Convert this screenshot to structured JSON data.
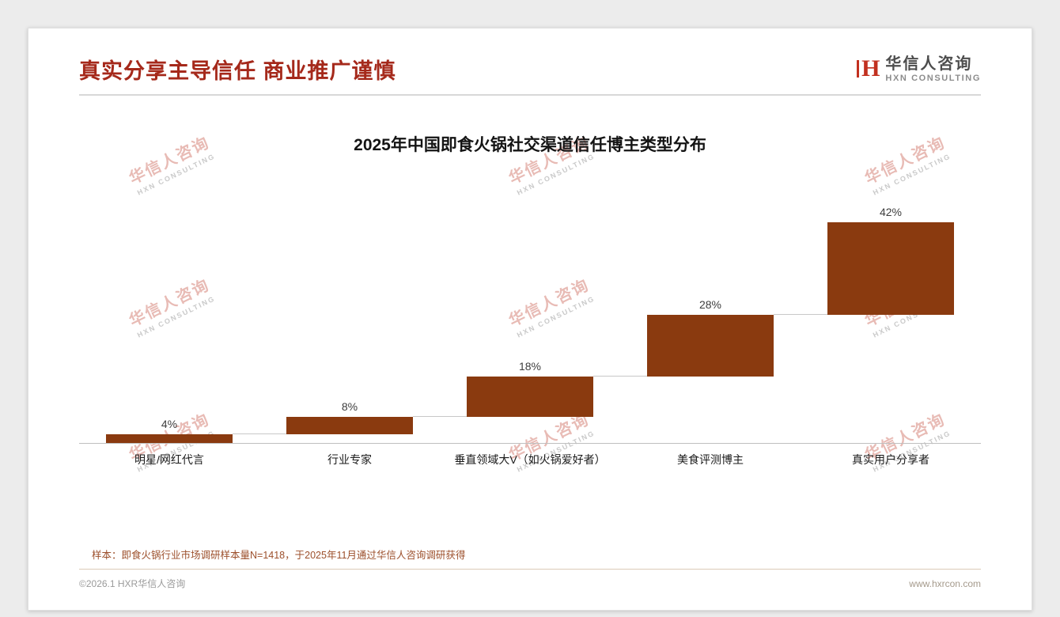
{
  "header": {
    "title": "真实分享主导信任 商业推广谨慎",
    "logo": {
      "mark": "H",
      "name": "华信人咨询",
      "sub": "HXN CONSULTING"
    }
  },
  "chart_data": {
    "type": "bar",
    "subtype": "waterfall",
    "title": "2025年中国即食火锅社交渠道信任博主类型分布",
    "categories": [
      "明星/网红代言",
      "行业专家",
      "垂直领域大V（如火锅爱好者）",
      "美食评测博主",
      "真实用户分享者"
    ],
    "values": [
      4,
      8,
      18,
      28,
      42
    ],
    "labels": [
      "4%",
      "8%",
      "18%",
      "28%",
      "42%"
    ],
    "cumulative_start": [
      0,
      4,
      12,
      30,
      58
    ],
    "ylim": [
      0,
      100
    ],
    "grid": false,
    "legend": false,
    "bar_color": "#8a3a0f"
  },
  "note": "样本：即食火锅行业市场调研样本量N=1418，于2025年11月通过华信人咨询调研获得",
  "footer": {
    "copyright": "©2026.1 HXR华信人咨询",
    "website": "www.hxrcon.com"
  },
  "watermark": {
    "line1": "华信人咨询",
    "line2": "HXN CONSULTING"
  },
  "colors": {
    "title": "#a5291b",
    "bar": "#8a3a0f",
    "note": "#9c4f2b",
    "logo_mark": "#c2301f",
    "watermark_cn": "#e3aba3",
    "watermark_en": "#bcbcbc",
    "axis": "#bfbfbf"
  }
}
